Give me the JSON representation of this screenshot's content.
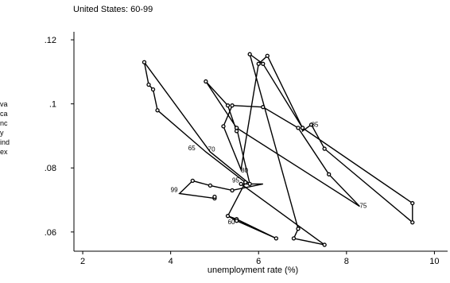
{
  "chart_data": {
    "type": "line",
    "title": "United States: 60-99",
    "xlabel": "unemployment rate (%)",
    "ylabel_lines": [
      "va",
      "ca",
      "nc",
      "y",
      "ind",
      "ex"
    ],
    "xlim": [
      1.8,
      10.3
    ],
    "ylim": [
      0.054,
      0.1225
    ],
    "xticks": [
      2,
      4,
      6,
      8,
      10
    ],
    "yticks": [
      0.06,
      0.08,
      0.1,
      0.12
    ],
    "xtick_labels": [
      "2",
      "4",
      "6",
      "8",
      "10"
    ],
    "ytick_labels": [
      ".06",
      ".08",
      ".1",
      ".12"
    ],
    "grid": false,
    "series": [
      {
        "points": [
          {
            "x": 5.3,
            "y": 0.065,
            "label": "60"
          },
          {
            "x": 5.5,
            "y": 0.064
          },
          {
            "x": 6.4,
            "y": 0.058
          },
          {
            "x": 5.5,
            "y": 0.0635
          },
          {
            "x": 5.3,
            "y": 0.065
          },
          {
            "x": 5.7,
            "y": 0.0755
          },
          {
            "x": 4.8,
            "y": 0.085,
            "label": "65"
          },
          {
            "x": 3.7,
            "y": 0.098
          },
          {
            "x": 3.6,
            "y": 0.1045
          },
          {
            "x": 3.5,
            "y": 0.106
          },
          {
            "x": 3.4,
            "y": 0.113
          },
          {
            "x": 4.9,
            "y": 0.085,
            "label": "70"
          },
          {
            "x": 5.8,
            "y": 0.075
          },
          {
            "x": 5.5,
            "y": 0.0925
          },
          {
            "x": 5.5,
            "y": 0.0915
          },
          {
            "x": 5.3,
            "y": 0.0995
          },
          {
            "x": 4.8,
            "y": 0.107
          },
          {
            "x": 5.5,
            "y": 0.0925
          },
          {
            "x": 8.3,
            "y": 0.068,
            "label": "75"
          },
          {
            "x": 7.6,
            "y": 0.078
          },
          {
            "x": 6.9,
            "y": 0.0925
          },
          {
            "x": 6.1,
            "y": 0.099
          },
          {
            "x": 5.4,
            "y": 0.0995
          },
          {
            "x": 5.2,
            "y": 0.093
          },
          {
            "x": 5.6,
            "y": 0.0795,
            "label": "80"
          },
          {
            "x": 6.0,
            "y": 0.1125
          },
          {
            "x": 6.2,
            "y": 0.115
          },
          {
            "x": 7.0,
            "y": 0.0925
          },
          {
            "x": 9.5,
            "y": 0.069
          },
          {
            "x": 9.5,
            "y": 0.063
          },
          {
            "x": 7.5,
            "y": 0.086
          },
          {
            "x": 7.2,
            "y": 0.0935
          },
          {
            "x": 7.0,
            "y": 0.0915,
            "label": "85"
          },
          {
            "x": 7.0,
            "y": 0.0925
          },
          {
            "x": 6.1,
            "y": 0.1125
          },
          {
            "x": 5.8,
            "y": 0.1155
          },
          {
            "x": 6.9,
            "y": 0.061
          },
          {
            "x": 6.8,
            "y": 0.058
          },
          {
            "x": 7.5,
            "y": 0.056
          },
          {
            "x": 5.6,
            "y": 0.075
          },
          {
            "x": 6.1,
            "y": 0.075,
            "label": "95"
          },
          {
            "x": 5.4,
            "y": 0.073
          },
          {
            "x": 4.9,
            "y": 0.0745
          },
          {
            "x": 4.5,
            "y": 0.076
          },
          {
            "x": 4.2,
            "y": 0.072,
            "label": "99"
          },
          {
            "x": 5.0,
            "y": 0.0705
          },
          {
            "x": 5.0,
            "y": 0.071
          }
        ]
      }
    ],
    "year_labels": [
      {
        "text": "60",
        "x": 5.3,
        "y": 0.0625
      },
      {
        "text": "65",
        "x": 4.4,
        "y": 0.0855
      },
      {
        "text": "70",
        "x": 4.85,
        "y": 0.0852
      },
      {
        "text": "75",
        "x": 8.3,
        "y": 0.0675
      },
      {
        "text": "80",
        "x": 5.6,
        "y": 0.0786
      },
      {
        "text": "85",
        "x": 7.2,
        "y": 0.0928
      },
      {
        "text": "95",
        "x": 5.4,
        "y": 0.0755
      },
      {
        "text": "99",
        "x": 4.0,
        "y": 0.0725
      }
    ]
  }
}
